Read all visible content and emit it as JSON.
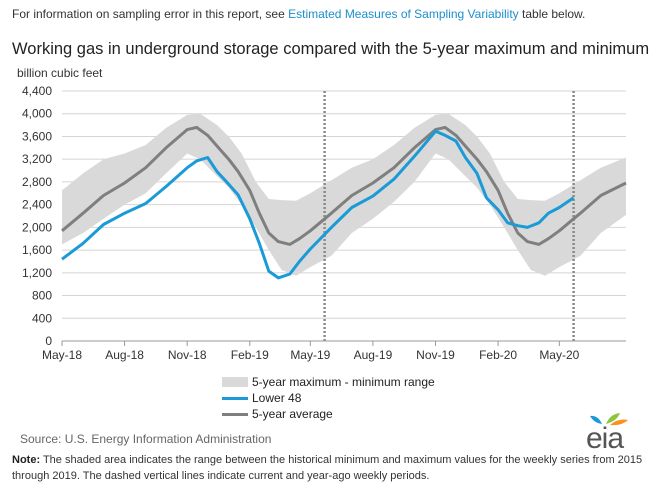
{
  "top_note": {
    "prefix": "For information on sampling error in this report, see ",
    "link": "Estimated Measures of Sampling Variability",
    "suffix": " table below."
  },
  "chart_data": {
    "type": "area",
    "title": "Working gas in underground storage compared with the 5-year maximum and minimum",
    "ylabel": "billion cubic feet",
    "xlabel": "",
    "ylim": [
      0,
      4400
    ],
    "yticks": [
      0,
      400,
      800,
      1200,
      1600,
      2000,
      2400,
      2800,
      3200,
      3600,
      4000,
      4400
    ],
    "ytick_labels": [
      "0",
      "400",
      "800",
      "1,200",
      "1,600",
      "2,000",
      "2,400",
      "2,800",
      "3,200",
      "3,600",
      "4,000",
      "4,400"
    ],
    "xticks": [
      "2018-05-01",
      "2018-08-01",
      "2018-11-01",
      "2019-02-01",
      "2019-05-01",
      "2019-08-01",
      "2019-11-01",
      "2020-02-01",
      "2020-05-01"
    ],
    "xtick_labels": [
      "May-18",
      "Aug-18",
      "Nov-18",
      "Feb-19",
      "May-19",
      "Aug-19",
      "Nov-19",
      "Feb-20",
      "May-20"
    ],
    "xlim": [
      "2018-05-01",
      "2020-08-07"
    ],
    "grid": "horizontal",
    "legend_position": "bottom",
    "reference_lines": [
      "2019-05-22",
      "2020-05-22"
    ],
    "series": [
      {
        "name": "5-year maximum - minimum range",
        "kind": "band",
        "color": "#d9d9d9",
        "x": [
          "2018-05-01",
          "2018-06-01",
          "2018-07-01",
          "2018-08-01",
          "2018-09-01",
          "2018-10-01",
          "2018-11-01",
          "2018-11-20",
          "2018-12-15",
          "2019-01-01",
          "2019-01-20",
          "2019-02-10",
          "2019-03-01",
          "2019-03-20",
          "2019-04-10",
          "2019-05-01",
          "2019-06-01",
          "2019-07-01",
          "2019-08-01",
          "2019-09-01",
          "2019-10-01",
          "2019-11-01",
          "2019-11-20",
          "2019-12-15",
          "2020-01-01",
          "2020-01-20",
          "2020-02-10",
          "2020-03-01",
          "2020-03-20",
          "2020-04-10",
          "2020-05-01",
          "2020-06-01",
          "2020-07-01",
          "2020-08-07"
        ],
        "upper": [
          2650,
          2950,
          3200,
          3300,
          3450,
          3750,
          3980,
          4000,
          3800,
          3600,
          3300,
          2800,
          2500,
          2480,
          2470,
          2600,
          2830,
          3050,
          3200,
          3450,
          3750,
          3980,
          4000,
          3800,
          3600,
          3300,
          2800,
          2500,
          2480,
          2470,
          2600,
          2830,
          3050,
          3230
        ],
        "lower": [
          1700,
          1900,
          2150,
          2400,
          2600,
          2950,
          3300,
          3200,
          2900,
          2700,
          2400,
          2000,
          1600,
          1250,
          1150,
          1300,
          1500,
          1900,
          2150,
          2450,
          2800,
          3300,
          3200,
          2900,
          2700,
          2400,
          2000,
          1600,
          1250,
          1150,
          1300,
          1500,
          1900,
          2220
        ]
      },
      {
        "name": "Lower 48",
        "kind": "line",
        "color": "#1b9ad8",
        "x": [
          "2018-05-01",
          "2018-06-01",
          "2018-07-01",
          "2018-08-01",
          "2018-09-01",
          "2018-10-01",
          "2018-11-01",
          "2018-11-15",
          "2018-12-01",
          "2018-12-15",
          "2019-01-01",
          "2019-01-15",
          "2019-02-01",
          "2019-02-15",
          "2019-03-01",
          "2019-03-15",
          "2019-04-01",
          "2019-04-15",
          "2019-05-01",
          "2019-06-01",
          "2019-07-01",
          "2019-08-01",
          "2019-09-01",
          "2019-10-01",
          "2019-11-01",
          "2019-11-15",
          "2019-12-01",
          "2019-12-15",
          "2020-01-01",
          "2020-01-15",
          "2020-02-01",
          "2020-02-15",
          "2020-03-01",
          "2020-03-15",
          "2020-04-01",
          "2020-04-15",
          "2020-05-01",
          "2020-05-22"
        ],
        "values": [
          1440,
          1720,
          2050,
          2250,
          2420,
          2720,
          3050,
          3170,
          3230,
          2980,
          2760,
          2570,
          2150,
          1720,
          1230,
          1110,
          1180,
          1400,
          1620,
          2000,
          2350,
          2550,
          2850,
          3250,
          3690,
          3620,
          3520,
          3230,
          2950,
          2520,
          2310,
          2080,
          2030,
          2000,
          2080,
          2250,
          2350,
          2520
        ]
      },
      {
        "name": "5-year average",
        "kind": "line",
        "color": "#7f7f7f",
        "x": [
          "2018-05-01",
          "2018-06-01",
          "2018-07-01",
          "2018-08-01",
          "2018-09-01",
          "2018-10-01",
          "2018-11-01",
          "2018-11-15",
          "2018-12-01",
          "2018-12-15",
          "2019-01-01",
          "2019-01-15",
          "2019-02-01",
          "2019-02-15",
          "2019-03-01",
          "2019-03-15",
          "2019-04-01",
          "2019-04-15",
          "2019-05-01",
          "2019-06-01",
          "2019-07-01",
          "2019-08-01",
          "2019-09-01",
          "2019-10-01",
          "2019-11-01",
          "2019-11-15",
          "2019-12-01",
          "2019-12-15",
          "2020-01-01",
          "2020-01-15",
          "2020-02-01",
          "2020-02-15",
          "2020-03-01",
          "2020-03-15",
          "2020-04-01",
          "2020-04-15",
          "2020-05-01",
          "2020-05-22",
          "2020-06-01",
          "2020-07-01",
          "2020-08-07"
        ],
        "values": [
          1940,
          2250,
          2560,
          2780,
          3050,
          3400,
          3720,
          3760,
          3620,
          3430,
          3200,
          2980,
          2650,
          2250,
          1900,
          1750,
          1700,
          1800,
          1940,
          2250,
          2560,
          2780,
          3050,
          3400,
          3720,
          3760,
          3620,
          3430,
          3200,
          2980,
          2650,
          2250,
          1900,
          1750,
          1700,
          1800,
          1940,
          2150,
          2250,
          2560,
          2780
        ]
      }
    ]
  },
  "legend": {
    "band_label": "5-year maximum - minimum range",
    "lower48_label": "Lower 48",
    "avg_label": "5-year average"
  },
  "source": "Source:  U.S. Energy Information Administration",
  "logo_text": "eia",
  "note": {
    "label": "Note:",
    "text": " The shaded area indicates the range between the historical minimum and maximum values for the weekly series from 2015 through 2019. The dashed vertical lines indicate current and year-ago weekly periods."
  }
}
